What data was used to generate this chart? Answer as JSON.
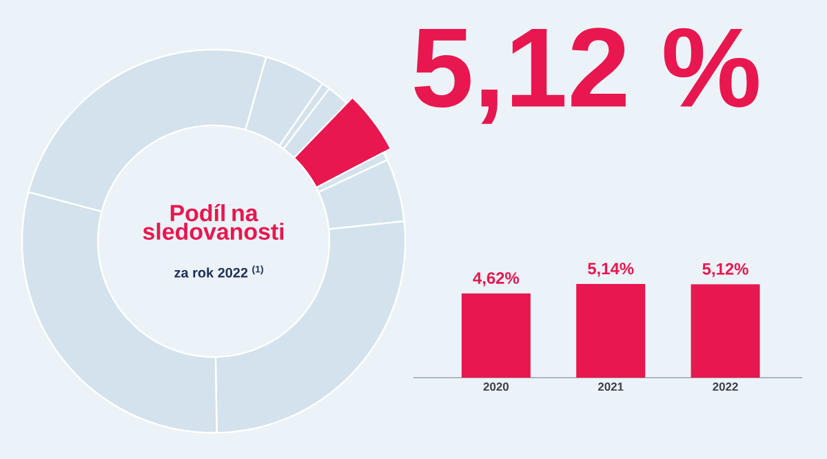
{
  "chart_data": [
    {
      "type": "donut",
      "title": "Podíl na sledovanosti",
      "subtitle": "za rok 2022 $^{(1)}$",
      "categories": [
        null,
        null,
        null,
        null,
        null,
        null,
        null,
        null,
        null
      ],
      "values": [
        5.2,
        0.7,
        1.9,
        5.12,
        0.7,
        5.3,
        26.4,
        29.4,
        25.28
      ],
      "colors": [
        "#d3e2ec",
        "#d3e2ec",
        "#d3e2ec",
        "#e8174f",
        "#d3e2ec",
        "#d3e2ec",
        "#d3e2ec",
        "#d3e2ec",
        "#d3e2ec"
      ],
      "value_labels": [
        null,
        null,
        null,
        "5,12 %",
        null,
        null,
        null,
        null,
        null
      ]
    },
    {
      "type": "bar",
      "categories": [
        "2020",
        "2021",
        "2022"
      ],
      "values": [
        4.62,
        5.14,
        5.12
      ],
      "color": "#e8174f",
      "value_labels": [
        "4,62%",
        "5,14%",
        "5,12%"
      ]
    }
  ]
}
